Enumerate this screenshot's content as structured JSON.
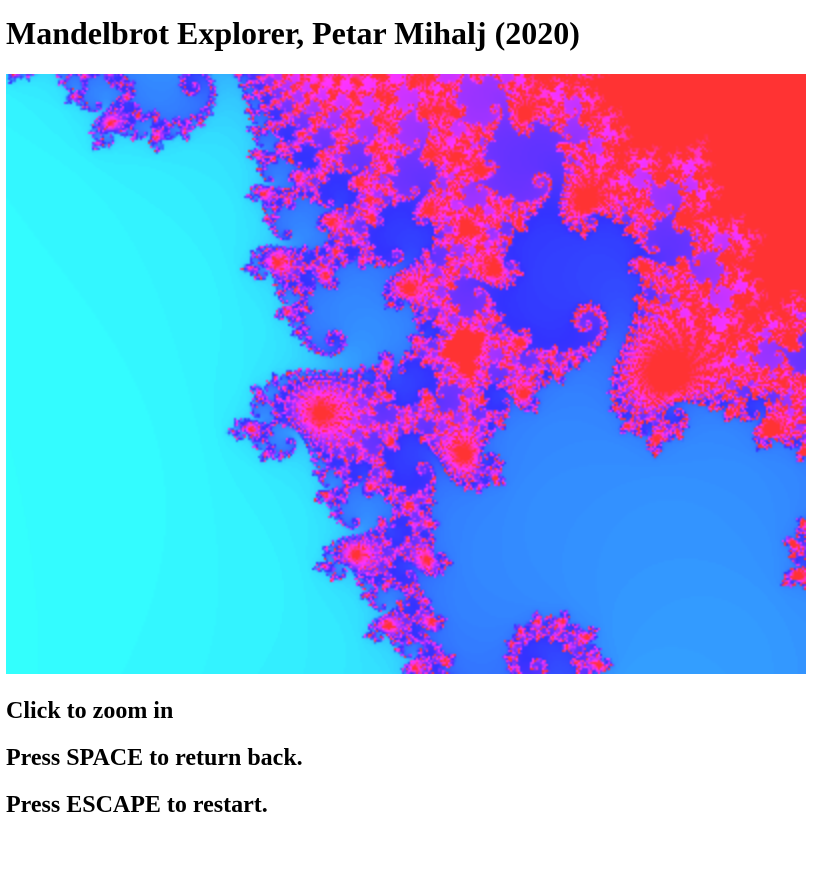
{
  "page": {
    "title": "Mandelbrot Explorer, Petar Mihalj (2020)"
  },
  "instructions": [
    "Click to zoom in",
    "Press SPACE to return back.",
    "Press ESCAPE to restart."
  ],
  "fractal": {
    "palette": {
      "set_color": "#ff3333",
      "far_color": "#ffff33",
      "mid_color": "#33ff33",
      "near_color": "#33ffff",
      "edge_color": "#3333ff",
      "close_color": "#ff33ff"
    }
  }
}
